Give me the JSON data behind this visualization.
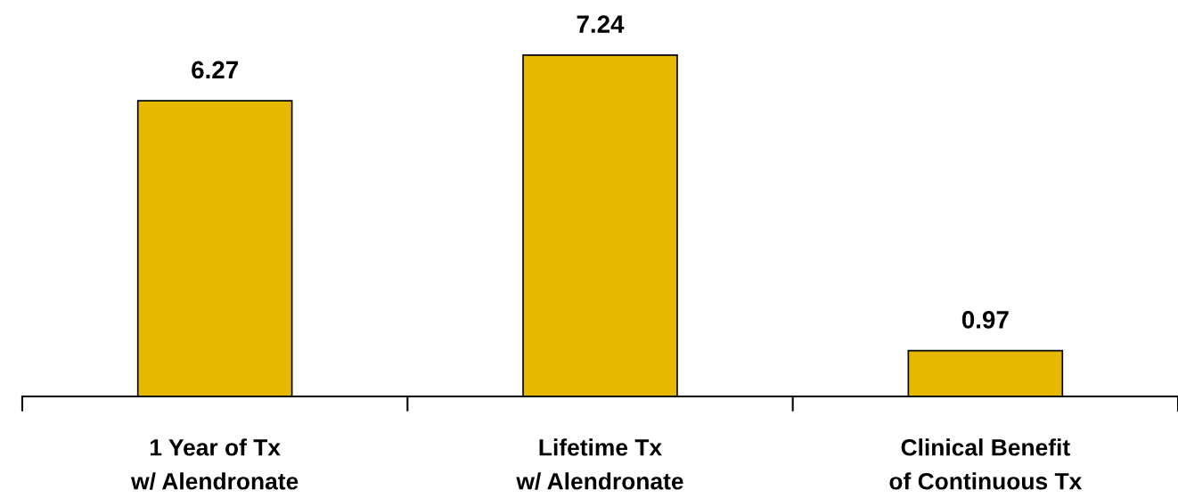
{
  "chart_data": {
    "type": "bar",
    "categories": [
      "1 Year of Tx\nw/ Alendronate",
      "Lifetime Tx\nw/ Alendronate",
      "Clinical Benefit\nof Continuous Tx"
    ],
    "values": [
      6.27,
      7.24,
      0.97
    ],
    "color": "#e6b800",
    "data_labels": true
  }
}
